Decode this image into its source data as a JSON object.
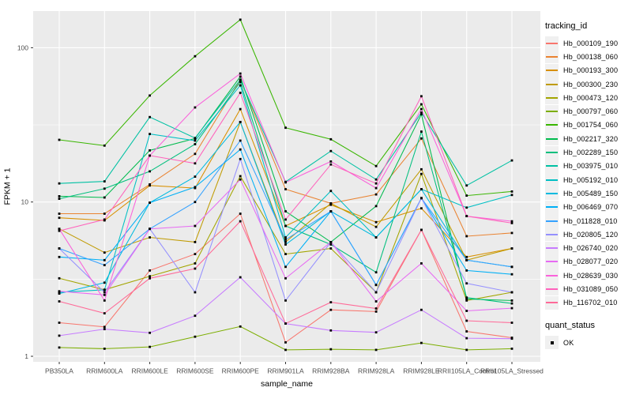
{
  "panel": {
    "background": "#EBEBEB",
    "grid_color": "#FFFFFF",
    "tick_label_color": "#4D4D4D",
    "marker_color": "#000000"
  },
  "axes": {
    "x_title": "sample_name",
    "y_title": "FPKM + 1",
    "y_tick_labels": [
      "100",
      "10",
      "1"
    ]
  },
  "legend": {
    "tracking_title": "tracking_id",
    "quant_title": "quant_status",
    "quant_entries": [
      {
        "label": "OK",
        "marker": "black-square"
      }
    ]
  },
  "chart_data": {
    "type": "line",
    "title": "",
    "xlabel": "sample_name",
    "ylabel": "FPKM + 1",
    "y_scale": "log10",
    "y_ticks": [
      1,
      10,
      100
    ],
    "y_minor_gridlines": [
      3.1623,
      31.623
    ],
    "ylim": [
      0.92,
      172
    ],
    "grid": true,
    "legend_position": "right",
    "legend_title": "tracking_id",
    "quant_status_legend": {
      "title": "quant_status",
      "entries": [
        "OK"
      ]
    },
    "marker": "small black square",
    "categories": [
      "PB350LA",
      "RRIM600LA",
      "RRIM600LE",
      "RRIM600SE",
      "RRIM600PE",
      "RRIM901LA",
      "RRIM928BA",
      "RRIM928LA",
      "RRIM928LE",
      "RRII105LA_Control",
      "RRII105LA_Stressed"
    ],
    "series": [
      {
        "name": "Hb_000109_190",
        "color": "#F8766D",
        "values": [
          1.65,
          1.55,
          3.6,
          4.6,
          8.4,
          1.23,
          2.0,
          1.95,
          6.6,
          1.45,
          1.32
        ]
      },
      {
        "name": "Hb_000138_060",
        "color": "#EA8331",
        "values": [
          8.4,
          8.4,
          13.0,
          20.5,
          62.0,
          12.1,
          9.8,
          11.2,
          25.8,
          6.0,
          6.3
        ]
      },
      {
        "name": "Hb_000193_300",
        "color": "#D89000",
        "values": [
          7.9,
          7.6,
          12.8,
          12.3,
          40.0,
          7.0,
          9.6,
          7.4,
          9.1,
          4.4,
          5.0
        ]
      },
      {
        "name": "Hb_000300_230",
        "color": "#C09B00",
        "values": [
          6.7,
          4.7,
          5.9,
          5.5,
          33.0,
          5.5,
          9.8,
          6.9,
          16.3,
          4.2,
          5.0
        ]
      },
      {
        "name": "Hb_000473_120",
        "color": "#A3A500",
        "values": [
          3.2,
          2.7,
          3.3,
          4.0,
          14.7,
          4.6,
          5.0,
          2.6,
          15.2,
          2.3,
          2.6
        ]
      },
      {
        "name": "Hb_000797_060",
        "color": "#7CAE00",
        "values": [
          1.14,
          1.12,
          1.15,
          1.34,
          1.56,
          1.1,
          1.11,
          1.1,
          1.22,
          1.1,
          1.12
        ]
      },
      {
        "name": "Hb_001754_060",
        "color": "#39B600",
        "values": [
          25.3,
          23.2,
          49.0,
          88.0,
          152.0,
          30.3,
          25.5,
          17.1,
          43.0,
          11.0,
          11.7
        ]
      },
      {
        "name": "Hb_002217_320",
        "color": "#00BB4E",
        "values": [
          10.9,
          10.7,
          21.6,
          25.8,
          65.0,
          8.7,
          5.5,
          9.4,
          37.0,
          2.35,
          2.3
        ]
      },
      {
        "name": "Hb_002289_150",
        "color": "#00BF7D",
        "values": [
          10.5,
          12.2,
          15.8,
          23.7,
          60.0,
          7.0,
          5.3,
          3.5,
          28.6,
          2.4,
          2.2
        ]
      },
      {
        "name": "Hb_003975_010",
        "color": "#00C1A3",
        "values": [
          13.2,
          13.6,
          35.5,
          26.0,
          62.0,
          13.5,
          21.4,
          14.0,
          38.0,
          12.8,
          18.6
        ]
      },
      {
        "name": "Hb_005192_010",
        "color": "#00BFC4",
        "values": [
          2.6,
          2.7,
          27.6,
          25.0,
          57.0,
          5.9,
          11.8,
          5.9,
          12.1,
          9.2,
          11.1
        ]
      },
      {
        "name": "Hb_005489_150",
        "color": "#00BAE0",
        "values": [
          2.55,
          3.0,
          9.9,
          14.6,
          33.0,
          5.3,
          8.7,
          5.9,
          12.1,
          4.2,
          3.8
        ]
      },
      {
        "name": "Hb_006469_070",
        "color": "#00B0F6",
        "values": [
          4.4,
          4.2,
          9.9,
          12.5,
          21.9,
          3.8,
          8.7,
          2.9,
          10.6,
          3.6,
          3.4
        ]
      },
      {
        "name": "Hb_011828_010",
        "color": "#35A2FF",
        "values": [
          5.0,
          3.9,
          6.7,
          10.0,
          25.0,
          5.7,
          8.7,
          2.9,
          10.6,
          4.2,
          3.8
        ]
      },
      {
        "name": "Hb_020805_120",
        "color": "#9590FF",
        "values": [
          5.0,
          2.6,
          6.7,
          2.6,
          19.0,
          2.3,
          5.5,
          2.6,
          10.6,
          2.97,
          2.6
        ]
      },
      {
        "name": "Hb_026740_020",
        "color": "#C77CFF",
        "values": [
          1.36,
          1.5,
          1.42,
          1.83,
          3.25,
          1.63,
          1.47,
          1.43,
          2.0,
          1.31,
          1.3
        ]
      },
      {
        "name": "Hb_028077_020",
        "color": "#E76BF3",
        "values": [
          2.64,
          2.5,
          6.7,
          7.0,
          14.0,
          3.2,
          5.5,
          2.27,
          4.0,
          1.97,
          2.05
        ]
      },
      {
        "name": "Hb_028639_030",
        "color": "#FA62DB",
        "values": [
          6.7,
          2.3,
          20.0,
          41.0,
          68.0,
          13.4,
          18.3,
          12.3,
          40.0,
          8.1,
          7.5
        ]
      },
      {
        "name": "Hb_031089_050",
        "color": "#FF62BC",
        "values": [
          6.5,
          7.7,
          20.0,
          17.8,
          51.0,
          7.7,
          17.5,
          13.2,
          48.5,
          8.1,
          7.3
        ]
      },
      {
        "name": "Hb_116702_010",
        "color": "#FF6A98",
        "values": [
          2.27,
          1.9,
          3.2,
          3.7,
          7.5,
          1.63,
          2.24,
          2.04,
          6.6,
          1.7,
          1.65
        ]
      }
    ]
  }
}
